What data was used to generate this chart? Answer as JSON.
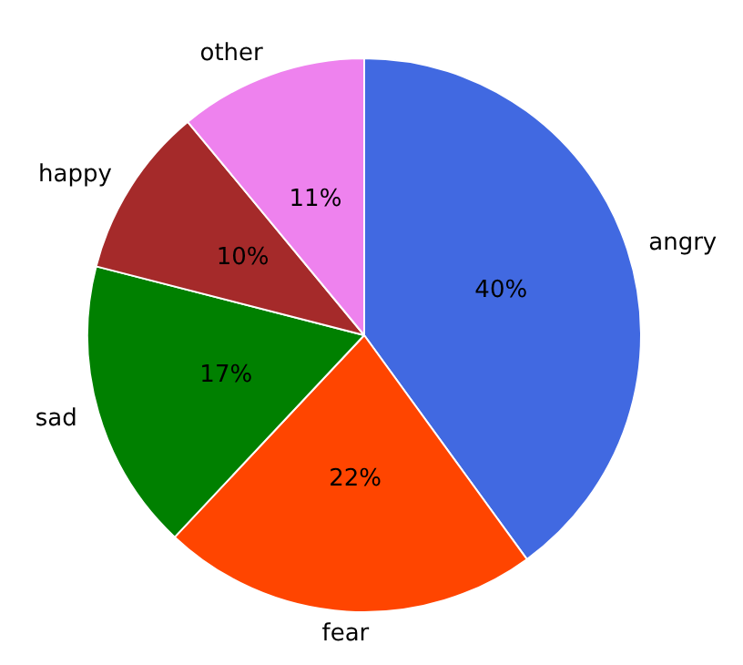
{
  "chart_data": {
    "type": "pie",
    "categories": [
      "angry",
      "fear",
      "sad",
      "happy",
      "other"
    ],
    "values": [
      40,
      22,
      17,
      10,
      11
    ],
    "value_labels": [
      "40%",
      "22%",
      "17%",
      "10%",
      "11%"
    ],
    "colors": [
      "#4169e1",
      "#ff4500",
      "#008000",
      "#a52a2a",
      "#ee82ee"
    ],
    "legend": false
  }
}
